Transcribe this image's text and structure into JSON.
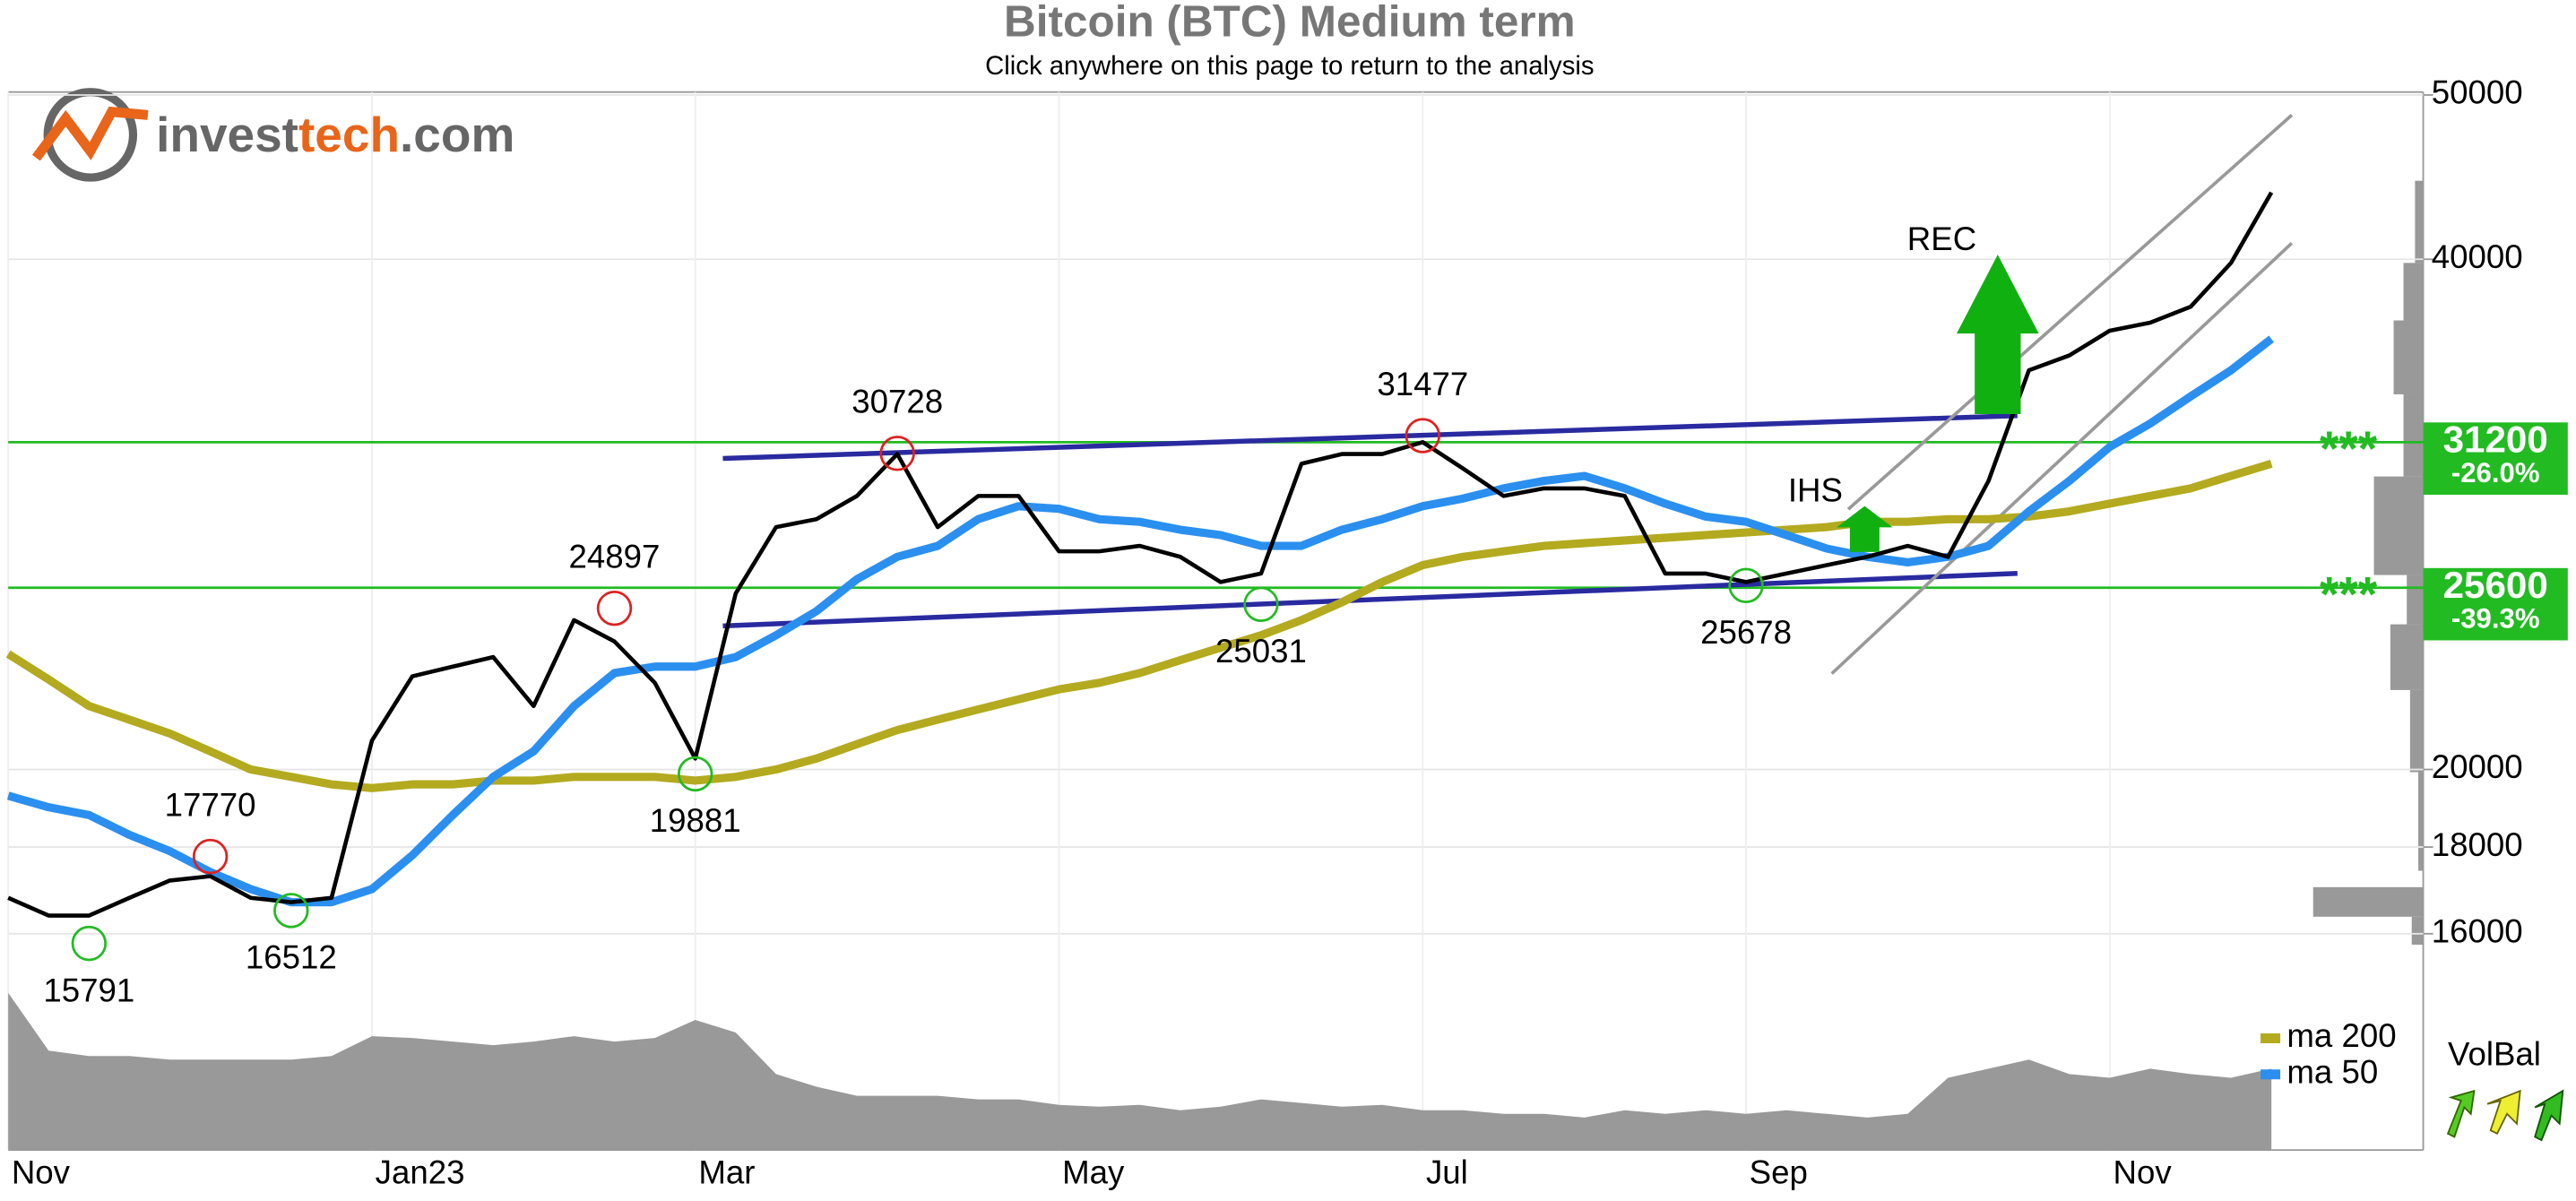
{
  "chart_data": {
    "type": "line",
    "title": "Bitcoin (BTC) Medium term",
    "subtitle": "Click anywhere on this page to return to the analysis",
    "logo": [
      "invest",
      "tech",
      ".com"
    ],
    "log_scale": true,
    "grid": true,
    "ylim": [
      15300,
      50200
    ],
    "yticks": [
      16000,
      18000,
      20000,
      40000,
      50000
    ],
    "categories": [
      "Nov",
      null,
      null,
      null,
      null,
      null,
      null,
      null,
      null,
      "Jan23",
      null,
      null,
      null,
      null,
      null,
      null,
      null,
      "Mar",
      null,
      null,
      null,
      null,
      null,
      null,
      null,
      null,
      "May",
      null,
      null,
      null,
      null,
      null,
      null,
      null,
      null,
      "Jul",
      null,
      null,
      null,
      null,
      null,
      null,
      null,
      "Sep",
      null,
      null,
      null,
      null,
      null,
      null,
      null,
      null,
      "Nov",
      null,
      null,
      null,
      null
    ],
    "color": "#000000",
    "values": [
      16800,
      16400,
      16400,
      16800,
      17200,
      17300,
      16800,
      16700,
      16800,
      20800,
      22700,
      23000,
      23300,
      21800,
      24500,
      23800,
      22500,
      20300,
      25400,
      27800,
      28100,
      29000,
      30700,
      27800,
      29000,
      29000,
      26900,
      26900,
      27100,
      26700,
      25800,
      26100,
      30300,
      30700,
      30700,
      31200,
      30100,
      29000,
      29300,
      29300,
      29000,
      26100,
      26100,
      25800,
      26100,
      26400,
      26700,
      27100,
      26700,
      29600,
      34400,
      35100,
      36300,
      36700,
      37500,
      39800,
      43800
    ],
    "series": [
      {
        "name": "ma 200",
        "color": "#b3aa1f",
        "values": [
          23400,
          22600,
          21800,
          21400,
          21000,
          20500,
          20000,
          19800,
          19600,
          19500,
          19600,
          19600,
          19700,
          19700,
          19800,
          19800,
          19800,
          19700,
          19800,
          20000,
          20300,
          20700,
          21100,
          21400,
          21700,
          22000,
          22300,
          22500,
          22800,
          23200,
          23600,
          24000,
          24500,
          25100,
          25800,
          26400,
          26700,
          26900,
          27100,
          27200,
          27300,
          27400,
          27500,
          27600,
          27700,
          27800,
          28000,
          28000,
          28100,
          28100,
          28200,
          28400,
          28700,
          29000,
          29300,
          29800,
          30300
        ]
      },
      {
        "name": "ma 50",
        "color": "#2b8ff0",
        "values": [
          19300,
          19000,
          18800,
          18300,
          17900,
          17400,
          17000,
          16700,
          16700,
          17000,
          17800,
          18800,
          19800,
          20500,
          21800,
          22800,
          23000,
          23000,
          23300,
          24000,
          24800,
          25900,
          26700,
          27100,
          28100,
          28600,
          28500,
          28100,
          28000,
          27700,
          27500,
          27100,
          27100,
          27700,
          28100,
          28600,
          28900,
          29300,
          29600,
          29800,
          29300,
          28700,
          28200,
          28000,
          27500,
          27000,
          26700,
          26500,
          26700,
          27100,
          28400,
          29600,
          31000,
          32000,
          33200,
          34400,
          35900
        ]
      }
    ],
    "tops": [
      null,
      null,
      null,
      null,
      null,
      17770,
      null,
      null,
      null,
      null,
      null,
      null,
      null,
      null,
      null,
      24897,
      null,
      null,
      null,
      null,
      null,
      null,
      30728,
      null,
      null,
      null,
      null,
      null,
      null,
      null,
      null,
      null,
      null,
      null,
      null,
      31477,
      null,
      null,
      null,
      null,
      null,
      null,
      null,
      null,
      null,
      null,
      null,
      null,
      null,
      null,
      null,
      null,
      null,
      null,
      null,
      null,
      null
    ],
    "bottoms": [
      null,
      null,
      15791,
      null,
      null,
      null,
      null,
      16512,
      null,
      null,
      null,
      null,
      null,
      null,
      null,
      null,
      null,
      19881,
      null,
      null,
      null,
      null,
      null,
      null,
      null,
      null,
      null,
      null,
      null,
      null,
      null,
      25031,
      null,
      null,
      null,
      null,
      null,
      null,
      null,
      null,
      null,
      null,
      null,
      25678,
      null,
      null,
      null,
      null,
      null,
      null,
      null,
      null,
      null,
      null,
      null,
      null,
      null
    ],
    "volume": [
      87,
      55,
      52,
      52,
      50,
      50,
      50,
      50,
      52,
      63,
      62,
      60,
      58,
      60,
      63,
      60,
      62,
      72,
      65,
      42,
      35,
      30,
      30,
      30,
      28,
      28,
      25,
      24,
      25,
      22,
      24,
      28,
      26,
      24,
      25,
      22,
      22,
      20,
      20,
      18,
      22,
      20,
      22,
      20,
      22,
      20,
      18,
      20,
      40,
      45,
      50,
      42,
      40,
      45,
      42,
      40,
      45
    ],
    "levels": [
      {
        "value": 31200,
        "marker": "***",
        "change": "-26.0%",
        "color": "#22bb22"
      },
      {
        "value": 25600,
        "marker": "***",
        "change": "-39.3%",
        "color": "#22bb22"
      }
    ],
    "annotations": [
      "REC",
      "IHS"
    ],
    "indicator": "VolBal"
  }
}
